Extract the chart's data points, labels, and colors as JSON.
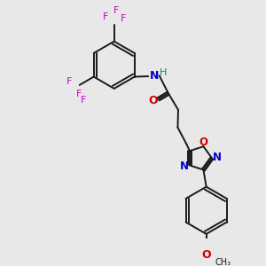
{
  "bg_color": "#e8e8e8",
  "bond_color": "#1a1a1a",
  "nitrogen_color": "#0000cc",
  "oxygen_color": "#cc0000",
  "fluorine_color": "#cc00cc",
  "hydrogen_color": "#008888",
  "figsize": [
    3.0,
    3.0
  ],
  "dpi": 100,
  "xlim": [
    0,
    10
  ],
  "ylim": [
    0,
    10
  ]
}
